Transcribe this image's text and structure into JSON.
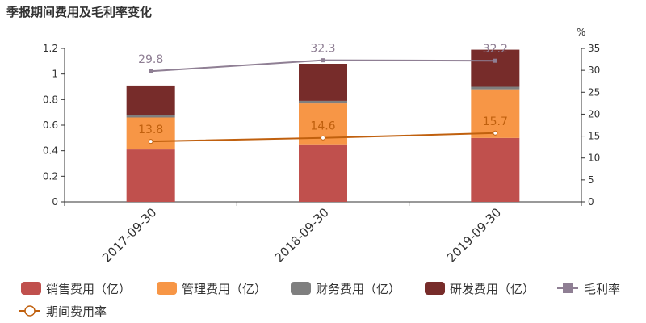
{
  "title": "季报期间费用及毛利率变化",
  "chart_data": {
    "type": "bar",
    "stacked": true,
    "categories": [
      "2017-09-30",
      "2018-09-30",
      "2019-09-30"
    ],
    "series": [
      {
        "name": "销售费用（亿）",
        "kind": "bar",
        "axis": "left",
        "color": "#c0504d",
        "values": [
          0.41,
          0.45,
          0.5
        ]
      },
      {
        "name": "管理费用（亿）",
        "kind": "bar",
        "axis": "left",
        "color": "#f79646",
        "values": [
          0.25,
          0.32,
          0.38
        ]
      },
      {
        "name": "财务费用（亿）",
        "kind": "bar",
        "axis": "left",
        "color": "#7f7f7f",
        "values": [
          0.02,
          0.02,
          0.02
        ]
      },
      {
        "name": "研发费用（亿）",
        "kind": "bar",
        "axis": "left",
        "color": "#772c2a",
        "values": [
          0.23,
          0.29,
          0.29
        ]
      },
      {
        "name": "毛利率",
        "kind": "line",
        "axis": "right",
        "color": "#8f7f94",
        "marker": "square",
        "values": [
          29.8,
          32.3,
          32.2
        ]
      },
      {
        "name": "期间费用率",
        "kind": "line",
        "axis": "right",
        "color": "#c0600e",
        "marker": "circle",
        "values": [
          13.8,
          14.6,
          15.7
        ]
      }
    ],
    "y_left": {
      "min": 0,
      "max": 1.2,
      "ticks": [
        "0",
        "0.2",
        "0.4",
        "0.6",
        "0.8",
        "1",
        "1.2"
      ]
    },
    "y_right": {
      "min": 0,
      "max": 35,
      "unit": "%",
      "ticks": [
        "0",
        "5",
        "10",
        "15",
        "20",
        "25",
        "30",
        "35"
      ]
    },
    "grid": false,
    "legend_position": "bottom"
  }
}
